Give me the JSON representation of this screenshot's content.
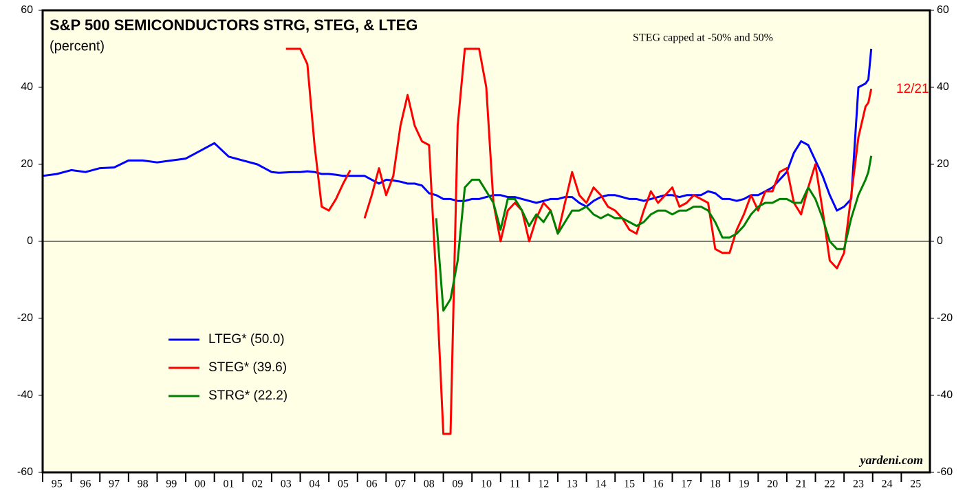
{
  "chart_data": {
    "type": "line",
    "title": "S&P 500 SEMICONDUCTORS STRG, STEG, & LTEG",
    "subtitle": "(percent)",
    "annotations": [
      "STEG capped at -50% and 50%",
      "12/21",
      "yardeni.com"
    ],
    "x": [
      1995,
      1995.5,
      1996,
      1996.5,
      1997,
      1997.5,
      1998,
      1998.5,
      1999,
      1999.5,
      2000,
      2000.5,
      2001,
      2001.5,
      2002,
      2002.5,
      2003,
      2003.25,
      2003.5,
      2003.75,
      2004,
      2004.25,
      2004.5,
      2004.75,
      2005,
      2005.25,
      2005.5,
      2005.75,
      2006,
      2006.25,
      2006.5,
      2006.75,
      2007,
      2007.25,
      2007.5,
      2007.75,
      2008,
      2008.25,
      2008.5,
      2008.75,
      2009,
      2009.25,
      2009.5,
      2009.75,
      2010,
      2010.25,
      2010.5,
      2010.75,
      2011,
      2011.25,
      2011.5,
      2011.75,
      2012,
      2012.25,
      2012.5,
      2012.75,
      2013,
      2013.25,
      2013.5,
      2013.75,
      2014,
      2014.25,
      2014.5,
      2014.75,
      2015,
      2015.25,
      2015.5,
      2015.75,
      2016,
      2016.25,
      2016.5,
      2016.75,
      2017,
      2017.25,
      2017.5,
      2017.75,
      2018,
      2018.25,
      2018.5,
      2018.75,
      2019,
      2019.25,
      2019.5,
      2019.75,
      2020,
      2020.25,
      2020.5,
      2020.75,
      2021,
      2021.25,
      2021.5,
      2021.75,
      2022,
      2022.25,
      2022.5,
      2022.75,
      2023,
      2023.25,
      2023.5,
      2023.75,
      2023.85,
      2023.95
    ],
    "series": [
      {
        "name": "LTEG* (50.0)",
        "color": "#0000ff",
        "values": [
          17,
          17.5,
          18.5,
          18,
          19,
          19.2,
          21,
          21,
          20.5,
          21,
          21.5,
          23.5,
          25.5,
          22,
          21,
          20,
          18,
          17.8,
          17.9,
          18,
          18,
          18.2,
          18,
          17.5,
          17.5,
          17.3,
          17,
          17,
          17,
          17,
          16,
          15,
          16,
          15.8,
          15.5,
          15,
          15,
          14.5,
          12.5,
          12,
          11,
          11,
          10.5,
          10.5,
          11,
          11,
          11.5,
          12,
          12,
          11.5,
          11.5,
          11,
          10.5,
          10,
          10.5,
          11,
          11,
          11.5,
          11.5,
          10,
          9,
          10.5,
          11.5,
          12,
          12,
          11.5,
          11,
          11,
          10.5,
          11,
          11.5,
          12,
          12,
          11.5,
          12,
          12,
          12,
          13,
          12.5,
          11,
          11,
          10.5,
          11,
          12,
          12,
          13,
          14,
          16,
          18,
          23,
          26,
          25,
          21,
          17,
          12,
          8,
          9,
          11,
          40,
          41,
          42,
          50
        ]
      },
      {
        "name": "STEG* (39.6)",
        "color": "#ff0000",
        "values": [
          null,
          null,
          null,
          null,
          null,
          null,
          null,
          null,
          null,
          null,
          null,
          null,
          null,
          null,
          null,
          null,
          null,
          null,
          50,
          50,
          50,
          46,
          25,
          9,
          8,
          11,
          15,
          18.5,
          null,
          6,
          12,
          19,
          12,
          17,
          30,
          38,
          30,
          26,
          25,
          -10,
          -50,
          -50,
          30,
          50,
          50,
          50,
          40,
          10,
          0,
          8,
          10,
          8,
          0,
          6,
          10,
          8,
          2,
          10,
          18,
          12,
          10,
          14,
          12,
          9,
          8,
          6,
          3,
          2,
          8,
          13,
          10,
          12,
          14,
          9,
          10,
          12,
          11,
          10,
          -2,
          -3,
          -3,
          3,
          7,
          12,
          8,
          13,
          13,
          18,
          19,
          10,
          7,
          14,
          20,
          8,
          -5,
          -7,
          -3,
          12,
          27,
          35,
          36,
          39.6
        ]
      },
      {
        "name": "STRG* (22.2)",
        "color": "#008000",
        "values": [
          null,
          null,
          null,
          null,
          null,
          null,
          null,
          null,
          null,
          null,
          null,
          null,
          null,
          null,
          null,
          null,
          null,
          null,
          null,
          null,
          null,
          null,
          null,
          null,
          null,
          null,
          null,
          null,
          null,
          null,
          null,
          null,
          null,
          null,
          null,
          null,
          null,
          null,
          null,
          6,
          -18,
          -15,
          -5,
          14,
          16,
          16,
          13,
          10,
          3,
          11,
          11,
          8,
          4,
          7,
          5,
          8,
          2,
          5,
          8,
          8,
          9,
          7,
          6,
          7,
          6,
          6,
          5,
          4,
          5,
          7,
          8,
          8,
          7,
          8,
          8,
          9,
          9,
          8,
          5,
          1,
          1,
          2,
          4,
          7,
          9,
          10,
          10,
          11,
          11,
          10,
          10,
          14,
          11,
          6,
          0,
          -2,
          -2,
          6,
          12,
          16,
          18,
          22.2
        ]
      }
    ],
    "xlim": [
      1995,
      2026
    ],
    "xticks": [
      {
        "value": 1995,
        "label": "95"
      },
      {
        "value": 1996,
        "label": "96"
      },
      {
        "value": 1997,
        "label": "97"
      },
      {
        "value": 1998,
        "label": "98"
      },
      {
        "value": 1999,
        "label": "99"
      },
      {
        "value": 2000,
        "label": "00"
      },
      {
        "value": 2001,
        "label": "01"
      },
      {
        "value": 2002,
        "label": "02"
      },
      {
        "value": 2003,
        "label": "03"
      },
      {
        "value": 2004,
        "label": "04"
      },
      {
        "value": 2005,
        "label": "05"
      },
      {
        "value": 2006,
        "label": "06"
      },
      {
        "value": 2007,
        "label": "07"
      },
      {
        "value": 2008,
        "label": "08"
      },
      {
        "value": 2009,
        "label": "09"
      },
      {
        "value": 2010,
        "label": "10"
      },
      {
        "value": 2011,
        "label": "11"
      },
      {
        "value": 2012,
        "label": "12"
      },
      {
        "value": 2013,
        "label": "13"
      },
      {
        "value": 2014,
        "label": "14"
      },
      {
        "value": 2015,
        "label": "15"
      },
      {
        "value": 2016,
        "label": "16"
      },
      {
        "value": 2017,
        "label": "17"
      },
      {
        "value": 2018,
        "label": "18"
      },
      {
        "value": 2019,
        "label": "19"
      },
      {
        "value": 2020,
        "label": "20"
      },
      {
        "value": 2021,
        "label": "21"
      },
      {
        "value": 2022,
        "label": "22"
      },
      {
        "value": 2023,
        "label": "23"
      },
      {
        "value": 2024,
        "label": "24"
      },
      {
        "value": 2025,
        "label": "25"
      }
    ],
    "ylim": [
      -60,
      60
    ],
    "yticks": [
      -60,
      -40,
      -20,
      0,
      20,
      40,
      60
    ],
    "y2lim": [
      -60,
      60
    ],
    "y2ticks": [
      -60,
      -40,
      -20,
      0,
      20,
      40,
      60
    ],
    "zero_line": true
  }
}
